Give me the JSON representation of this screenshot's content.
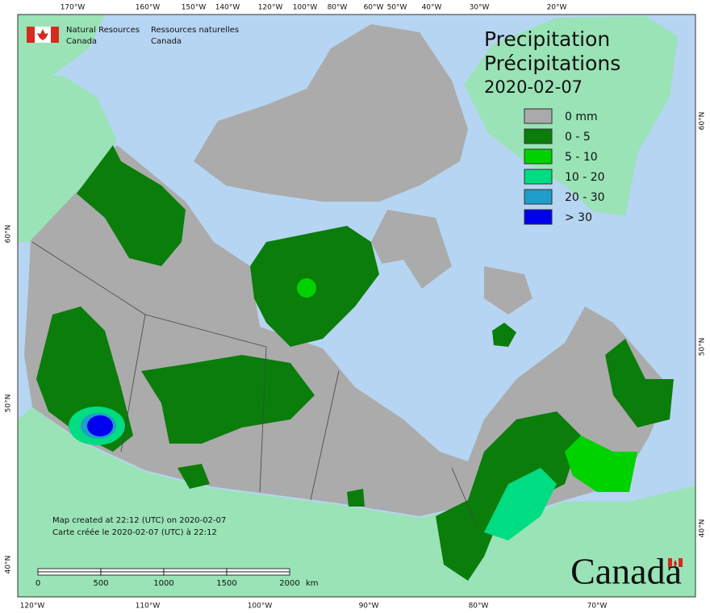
{
  "title": [
    "Precipitation",
    "Précipitations"
  ],
  "date": "2020-02-07",
  "legend": [
    {
      "label": "0 mm",
      "color": "#aaaaaa"
    },
    {
      "label": "0 - 5",
      "color": "#0a7d0a"
    },
    {
      "label": "5 - 10",
      "color": "#00d200"
    },
    {
      "label": "10 - 20",
      "color": "#00dc82"
    },
    {
      "label": "20 - 30",
      "color": "#1e9ec8"
    },
    {
      "label": "> 30",
      "color": "#0000f0"
    }
  ],
  "agency": {
    "en": [
      "Natural Resources",
      "Canada"
    ],
    "fr": [
      "Ressources naturelles",
      "Canada"
    ]
  },
  "created": [
    "Map created at 22:12 (UTC) on 2020-02-07",
    "Carte créée le 2020-02-07 (UTC) à 22:12"
  ],
  "scale_bar": {
    "ticks": [
      0,
      500,
      1000,
      1500,
      2000
    ],
    "unit": "km"
  },
  "graticule": {
    "top": [
      "170°W",
      "160°W",
      "150°W",
      "140°W",
      "120°W",
      "100°W",
      "80°W",
      "60°W",
      "50°W",
      "40°W",
      "30°W",
      "20°W"
    ],
    "bottom": [
      "120°W",
      "110°W",
      "100°W",
      "90°W",
      "80°W",
      "70°W"
    ],
    "left": [
      "60°N",
      "50°N",
      "40°N"
    ],
    "right": [
      "60°N",
      "50°N",
      "40°N"
    ]
  },
  "wordmark": "Canada"
}
